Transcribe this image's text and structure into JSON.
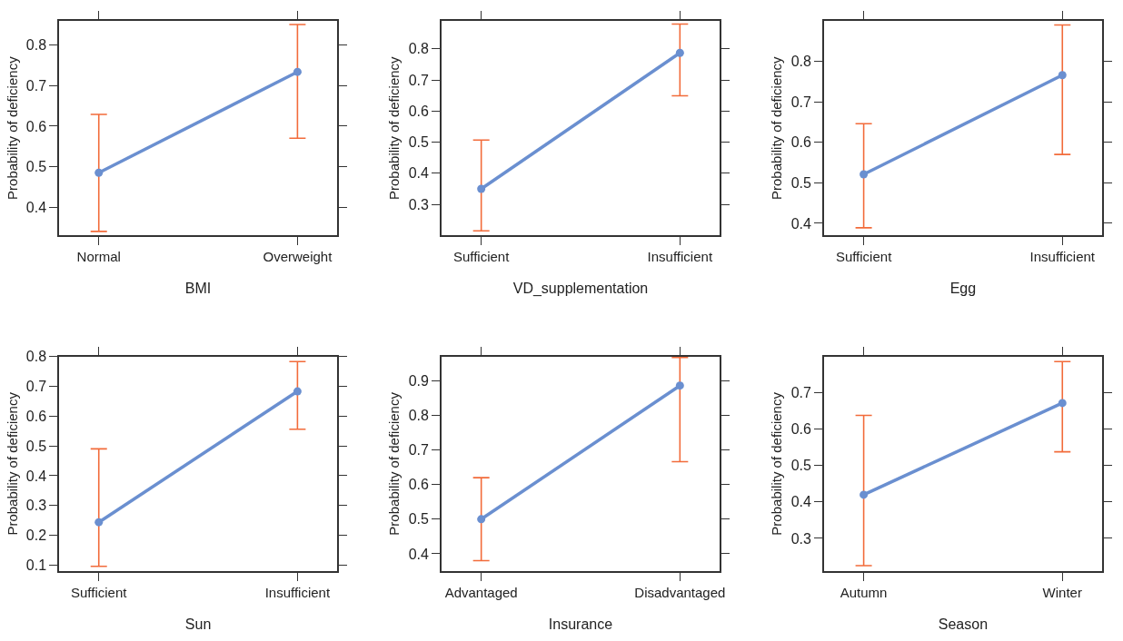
{
  "chart_data": [
    {
      "type": "line",
      "xlabel": "BMI",
      "ylabel": "Probability of deficiency",
      "categories": [
        "Normal",
        "Overweight"
      ],
      "ylim": [
        0.33,
        0.86
      ],
      "yticks": [
        0.4,
        0.5,
        0.6,
        0.7,
        0.8
      ],
      "marker": "circle",
      "line_style": "solid",
      "series": [
        {
          "color": "#6a8fd0",
          "values": [
            0.485,
            0.734
          ],
          "errors": [
            [
              0.34,
              0.629
            ],
            [
              0.57,
              0.851
            ]
          ]
        }
      ]
    },
    {
      "type": "line",
      "xlabel": "VD_supplementation",
      "ylabel": "Probability of deficiency",
      "categories": [
        "Sufficient",
        "Insufficient"
      ],
      "ylim": [
        0.2,
        0.89
      ],
      "yticks": [
        0.3,
        0.4,
        0.5,
        0.6,
        0.7,
        0.8
      ],
      "marker": "circle",
      "line_style": "solid",
      "series": [
        {
          "color": "#6a8fd0",
          "values": [
            0.35,
            0.787
          ],
          "errors": [
            [
              0.215,
              0.507
            ],
            [
              0.649,
              0.88
            ]
          ]
        }
      ]
    },
    {
      "type": "line",
      "xlabel": "Egg",
      "ylabel": "Probability of deficiency",
      "categories": [
        "Sufficient",
        "Insufficient"
      ],
      "ylim": [
        0.37,
        0.9
      ],
      "yticks": [
        0.4,
        0.5,
        0.6,
        0.7,
        0.8
      ],
      "marker": "circle",
      "line_style": "solid",
      "series": [
        {
          "color": "#6a8fd0",
          "values": [
            0.521,
            0.766
          ],
          "errors": [
            [
              0.389,
              0.646
            ],
            [
              0.57,
              0.89
            ]
          ]
        }
      ]
    },
    {
      "type": "line",
      "xlabel": "Sun",
      "ylabel": "Probability of deficiency",
      "categories": [
        "Sufficient",
        "Insufficient"
      ],
      "ylim": [
        0.08,
        0.8
      ],
      "yticks": [
        0.1,
        0.2,
        0.3,
        0.4,
        0.5,
        0.6,
        0.7,
        0.8
      ],
      "marker": "circle",
      "line_style": "solid",
      "series": [
        {
          "color": "#6a8fd0",
          "values": [
            0.244,
            0.683
          ],
          "errors": [
            [
              0.096,
              0.49
            ],
            [
              0.556,
              0.783
            ]
          ]
        }
      ]
    },
    {
      "type": "line",
      "xlabel": "Insurance",
      "ylabel": "Probability of deficiency",
      "categories": [
        "Advantaged",
        "Disadvantaged"
      ],
      "ylim": [
        0.35,
        0.97
      ],
      "yticks": [
        0.4,
        0.5,
        0.6,
        0.7,
        0.8,
        0.9
      ],
      "marker": "circle",
      "line_style": "solid",
      "series": [
        {
          "color": "#6a8fd0",
          "values": [
            0.5,
            0.886
          ],
          "errors": [
            [
              0.38,
              0.62
            ],
            [
              0.666,
              0.967
            ]
          ]
        }
      ]
    },
    {
      "type": "line",
      "xlabel": "Season",
      "ylabel": "Probability of deficiency",
      "categories": [
        "Autumn",
        "Winter"
      ],
      "ylim": [
        0.21,
        0.8
      ],
      "yticks": [
        0.3,
        0.4,
        0.5,
        0.6,
        0.7
      ],
      "marker": "circle",
      "line_style": "solid",
      "series": [
        {
          "color": "#6a8fd0",
          "values": [
            0.42,
            0.672
          ],
          "errors": [
            [
              0.225,
              0.638
            ],
            [
              0.538,
              0.786
            ]
          ]
        }
      ]
    }
  ]
}
